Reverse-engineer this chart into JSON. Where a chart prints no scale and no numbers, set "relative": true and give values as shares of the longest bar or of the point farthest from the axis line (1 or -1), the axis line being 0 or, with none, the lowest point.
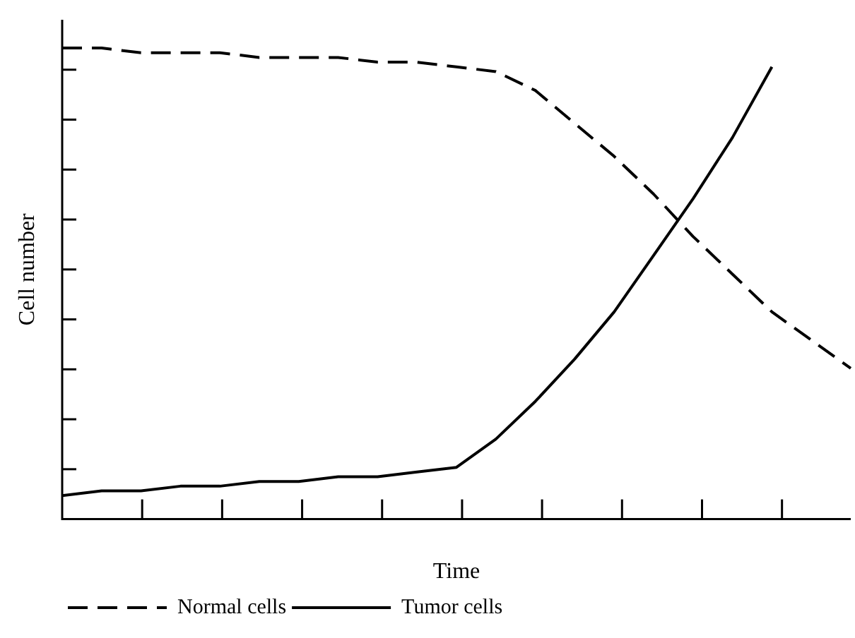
{
  "chart_data": {
    "type": "line",
    "relative": true,
    "xlabel": "Time",
    "ylabel": "Cell number",
    "categories": [
      null,
      null,
      null,
      null,
      null,
      null,
      null,
      null,
      null,
      null,
      null,
      null,
      null,
      null,
      null,
      null,
      null,
      null,
      null,
      null,
      null
    ],
    "series": [
      {
        "name": "Normal cells",
        "color": "#000000",
        "line_style": "dashed",
        "values": [
          1,
          1,
          0.99,
          0.99,
          0.99,
          0.98,
          0.98,
          0.98,
          0.97,
          0.97,
          0.96,
          0.95,
          0.91,
          0.84,
          0.77,
          0.69,
          0.6,
          0.52,
          0.44,
          0.38,
          0.32
        ]
      },
      {
        "name": "Tumor cells",
        "color": "#000000",
        "line_style": "solid",
        "values": [
          0.05,
          0.06,
          0.06,
          0.07,
          0.07,
          0.08,
          0.08,
          0.09,
          0.09,
          0.1,
          0.11,
          0.17,
          0.25,
          0.34,
          0.44,
          0.56,
          0.68,
          0.81,
          0.96,
          null,
          null
        ]
      }
    ],
    "marker": "none",
    "grid": false,
    "legend": "bottom"
  }
}
